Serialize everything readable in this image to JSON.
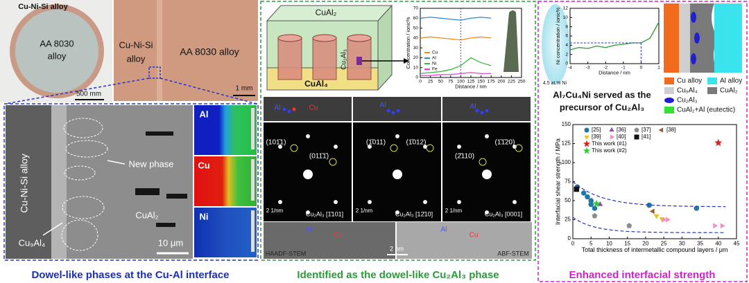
{
  "left_panel": {
    "disk_label": "Cu-Ni-Si alloy",
    "disk_center": [
      "AA 8030",
      "alloy"
    ],
    "disk_scale": "500 mm",
    "photo_left": [
      "Cu-Ni-Si",
      "alloy"
    ],
    "photo_right": "AA 8030 alloy",
    "photo_scale": "1 mm",
    "sem_labels": {
      "side": "Cu-Ni-Si alloy",
      "new_phase": "New phase",
      "matrix": "CuAl₂",
      "layer": "Cu₉Al₄",
      "scale": "10 μm"
    },
    "eds_maps": [
      "Al",
      "Cu",
      "Ni"
    ],
    "caption": "Dowel-like phases at the Cu-Al interface"
  },
  "middle_panel": {
    "schematic": [
      "CuAl₂",
      "Cu₂Al₃",
      "CuAl₄"
    ],
    "atoms": [
      "Al",
      "Cu"
    ],
    "spots": [
      "(101̄1)",
      "(011̄1̄)",
      "(1̄011)",
      "(1̄012)",
      "(2̄110)",
      "(1̄1̄20)"
    ],
    "zones": [
      "Cu₂Al₃ [1̄101]",
      "Cu₂Al₃ [12̄10]",
      "Cu₂Al₃ [0001]"
    ],
    "diffraction_scale": "2 1/nm",
    "stem_scale": "2 nm",
    "stem_modes": [
      "HAADF-STEM",
      "ABF-STEM"
    ],
    "caption": "Identified as the dowel-like Cu₂Al₃ phase"
  },
  "right_panel": {
    "apt_label": "4.5 at.% Ni",
    "inset_label": "4.5 at.% Ni",
    "legend": [
      "Cu alloy",
      "Al alloy",
      "Cu₉Al₄",
      "CuAl₂",
      "Cu₂Al₃",
      "CuAl₂+Al (eutectic)"
    ],
    "precursor": [
      "Al₇Cu₄Ni served as the",
      "precursor of Cu₂Al₃"
    ],
    "caption": "Enhanced interfacial strength"
  },
  "chart_data": [
    {
      "type": "line",
      "xlabel": "Distance / nm",
      "ylabel": "Concentration / ionic%",
      "xlim": [
        0,
        250
      ],
      "ylim": [
        0,
        70
      ],
      "xticks": [
        0,
        25,
        50,
        75,
        100,
        125,
        150,
        175,
        200,
        225,
        250
      ],
      "yticks": [
        0,
        10,
        20,
        30,
        40,
        50,
        60,
        70
      ],
      "series": [
        {
          "name": "Cu",
          "color": "#f08a24",
          "x": [
            0,
            25,
            50,
            75,
            100,
            125,
            150,
            175
          ],
          "values": [
            40,
            41,
            40,
            39,
            38,
            40,
            41,
            40
          ]
        },
        {
          "name": "Al",
          "color": "#2a8ad8",
          "x": [
            0,
            25,
            50,
            75,
            100,
            125,
            150,
            175
          ],
          "values": [
            60,
            61,
            60,
            59,
            58,
            60,
            61,
            60
          ]
        },
        {
          "name": "Ni",
          "color": "#3cb83c",
          "x": [
            0,
            25,
            50,
            75,
            100,
            125,
            150,
            175
          ],
          "values": [
            4,
            5,
            6,
            8,
            12,
            20,
            15,
            12
          ]
        },
        {
          "name": "Fe",
          "color": "#e040e0",
          "x": [
            0,
            25,
            50,
            75,
            100,
            125,
            150,
            175
          ],
          "values": [
            2,
            2,
            3,
            3,
            4,
            5,
            4,
            4
          ]
        }
      ]
    },
    {
      "type": "line",
      "xlabel": "Distance / nm",
      "ylabel": "Ni concentration / ionic%",
      "xlim": [
        -4,
        1
      ],
      "ylim": [
        0,
        12
      ],
      "xticks": [
        -4,
        -3,
        -2,
        -1,
        0,
        1
      ],
      "yticks": [
        0,
        2,
        4,
        6,
        8,
        10,
        12
      ],
      "series": [
        {
          "color": "#2e9a2e",
          "x": [
            -4,
            -3.5,
            -3,
            -2.5,
            -2,
            -1.5,
            -1,
            -0.5,
            0,
            0.5,
            1
          ],
          "values": [
            3,
            3.5,
            3.3,
            3.8,
            3.5,
            4,
            4.2,
            4.5,
            4.5,
            5.5,
            9
          ]
        }
      ]
    },
    {
      "type": "scatter",
      "xlabel": "Total thickness of intermetallic compound layers  / μm",
      "ylabel": "Interfacial shear strength / MPa",
      "xlim": [
        0,
        45
      ],
      "ylim": [
        0,
        150
      ],
      "xticks": [
        0,
        5,
        10,
        15,
        20,
        25,
        30,
        35,
        40,
        45
      ],
      "yticks": [
        0,
        25,
        50,
        75,
        100,
        125,
        150
      ],
      "series": [
        {
          "name": "[25]",
          "color": "#1f77a8",
          "marker": "circle",
          "x": [
            1.2,
            3,
            4,
            5,
            5,
            6,
            21,
            34
          ],
          "values": [
            68,
            60,
            55,
            50,
            45,
            40,
            44,
            40
          ]
        },
        {
          "name": "[36]",
          "color": "#8e4fb0",
          "marker": "triangle-up",
          "x": [
            7.5
          ],
          "values": [
            45
          ]
        },
        {
          "name": "[37]",
          "color": "#8c8c8c",
          "marker": "pentagon",
          "x": [
            6,
            15.5
          ],
          "values": [
            30,
            17
          ]
        },
        {
          "name": "[38]",
          "color": "#9a5a2a",
          "marker": "triangle-left",
          "x": [
            22
          ],
          "values": [
            36
          ]
        },
        {
          "name": "[39]",
          "color": "#e8c020",
          "marker": "triangle-down",
          "x": [
            23,
            24.5
          ],
          "values": [
            30,
            26
          ]
        },
        {
          "name": "[40]",
          "color": "#f090c8",
          "marker": "triangle-right",
          "x": [
            25,
            26,
            39,
            41
          ],
          "values": [
            25,
            25,
            17,
            17
          ]
        },
        {
          "name": "[41]",
          "color": "#111111",
          "marker": "square",
          "x": [
            1
          ],
          "values": [
            65
          ]
        },
        {
          "name": "This work (#1)",
          "color": "#e02020",
          "marker": "star",
          "x": [
            40
          ],
          "values": [
            126
          ]
        },
        {
          "name": "This work (#2)",
          "color": "#30d030",
          "marker": "star",
          "x": [
            6.5
          ],
          "values": [
            46
          ]
        }
      ]
    }
  ]
}
